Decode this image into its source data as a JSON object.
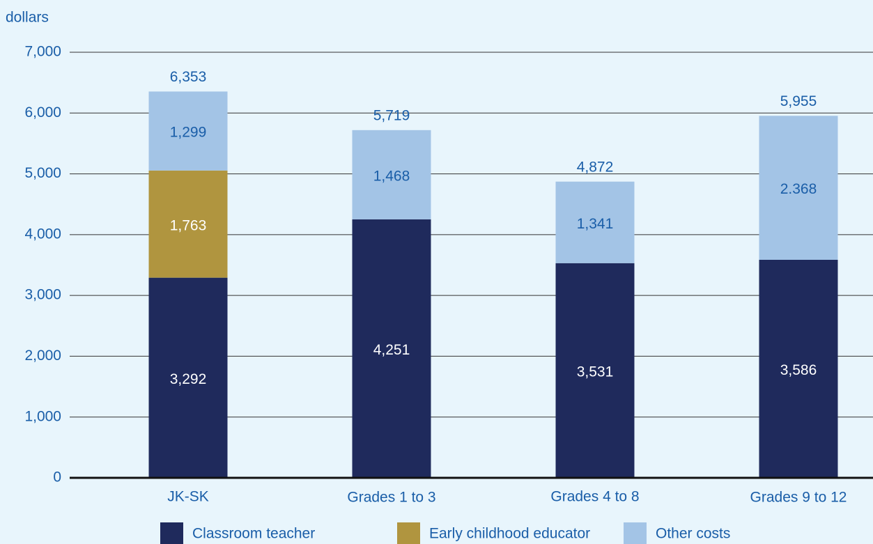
{
  "chart_data": {
    "type": "stacked_bar",
    "y_label": "dollars",
    "categories": [
      "JK-SK",
      "Grades 1 to 3",
      "Grades 4 to 8",
      "Grades 9 to 12"
    ],
    "series": [
      {
        "name": "Classroom teacher",
        "color": "#1f2a5c",
        "label_color": "#ffffff",
        "values": [
          3292,
          4251,
          3531,
          3586
        ],
        "value_labels": [
          "3,292",
          "4,251",
          "3,531",
          "3,586"
        ]
      },
      {
        "name": "Early childhood educator",
        "color": "#b0953f",
        "label_color": "#ffffff",
        "values": [
          1763,
          null,
          null,
          null
        ],
        "value_labels": [
          "1,763",
          null,
          null,
          null
        ]
      },
      {
        "name": "Other costs",
        "color": "#a3c4e6",
        "label_color": "#1a5ea8",
        "values": [
          1299,
          1468,
          1341,
          2368
        ],
        "value_labels": [
          "1,299",
          "1,468",
          "1,341",
          "2.368"
        ]
      }
    ],
    "totals": {
      "values": [
        6353,
        5719,
        4872,
        5955
      ],
      "value_labels": [
        "6,353",
        "5,719",
        "4,872",
        "5,955"
      ]
    },
    "ylim": [
      0,
      7000
    ],
    "yticks": [
      0,
      {
        "value": 1000,
        "label": "1,000"
      },
      {
        "value": 2000,
        "label": "2,000"
      },
      {
        "value": 3000,
        "label": "3,000"
      },
      {
        "value": 4000,
        "label": "4,000"
      },
      {
        "value": 5000,
        "label": "5,000"
      },
      {
        "value": 6000,
        "label": "6,000"
      },
      {
        "value": 7000,
        "label": "7,000"
      }
    ],
    "grid": true,
    "legend": "bottom"
  }
}
